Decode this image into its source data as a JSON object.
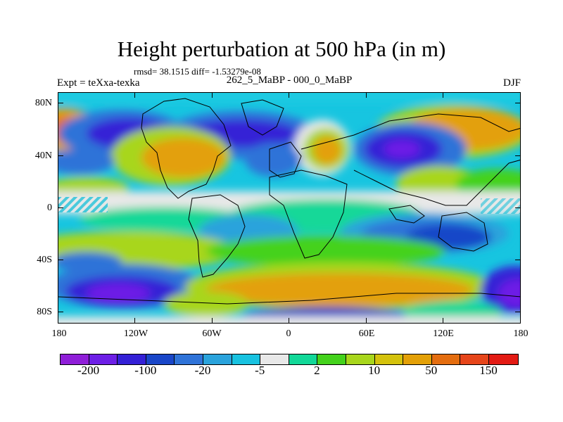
{
  "title": "Height perturbation at 500 hPa (in m)",
  "stats_text": "rmsd= 38.1515 diff= -1.53279e-08",
  "left_label": "Expt = teXxa-texka",
  "center_label": "262_5_MaBP - 000_0_MaBP",
  "right_label": "DJF",
  "lat_labels": [
    "80N",
    "40N",
    "0",
    "40S",
    "80S"
  ],
  "lon_labels": [
    "180",
    "120W",
    "60W",
    "0",
    "60E",
    "120E",
    "180"
  ],
  "colorbar": {
    "colors": [
      "#8f1ed8",
      "#6d1fe6",
      "#3420d6",
      "#1946c8",
      "#2f73d8",
      "#2aa3dc",
      "#18c2e0",
      "#e8e8e8",
      "#12d898",
      "#44d21c",
      "#a8d61c",
      "#d4c20c",
      "#e3a007",
      "#e46d0f",
      "#e6451a",
      "#e31b14"
    ],
    "labels": [
      "-200",
      "-100",
      "-20",
      "-5",
      "2",
      "10",
      "50",
      "150"
    ]
  }
}
